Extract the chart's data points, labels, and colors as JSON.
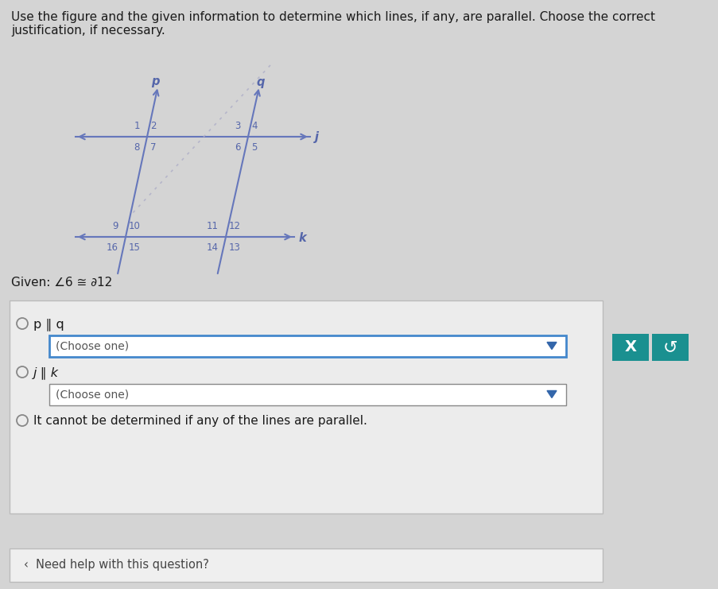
{
  "bg_color": "#d4d4d4",
  "title_text": "Use the figure and the given information to determine which lines, if any, are parallel. Choose the correct\njustification, if necessary.",
  "given_text": "Given: ∠6 ≅ ∂12",
  "line_color": "#6677bb",
  "arrow_color": "#6677bb",
  "text_color": "#1a1a1a",
  "label_color": "#5566aa",
  "angle_color": "#5566aa",
  "dot_line_color": "#aaaacc",
  "radio_options": [
    "p ∥ q",
    "j ∥ k",
    "It cannot be determined if any of the lines are parallel."
  ],
  "dropdown_labels": [
    "(Choose one)",
    "(Choose one)"
  ],
  "btn_x_color": "#1a9090",
  "btn_redo_color": "#1a9090",
  "panel_bg": "#ececec",
  "panel_border": "#bbbbbb",
  "dd1_border": "#4488cc",
  "dd2_border": "#888888",
  "bottom_panel_bg": "#efefef",
  "circle_color": "#888888",
  "need_help_text": "‹›  Need help with this question?"
}
